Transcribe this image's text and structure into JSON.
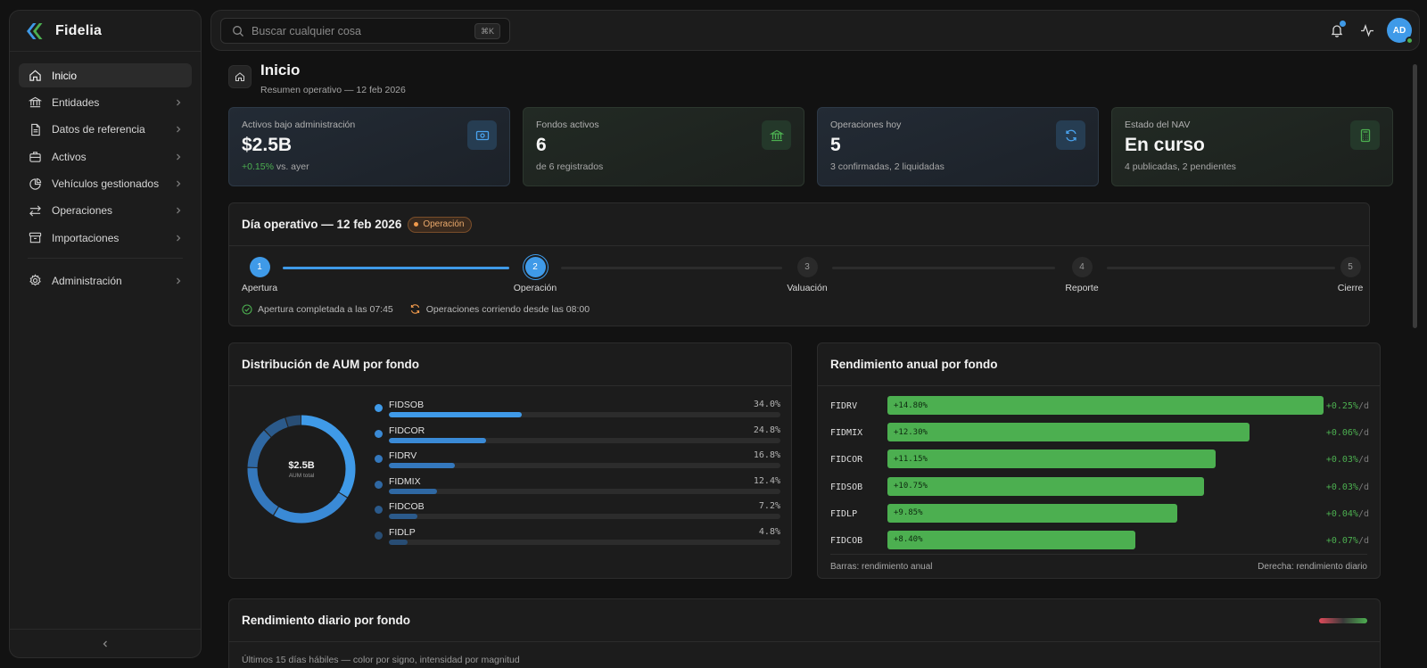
{
  "brand": {
    "name": "Fidelia",
    "logo_icon": "fidelia-logo"
  },
  "sidebar": {
    "items": [
      {
        "label": "Inicio",
        "icon": "home-icon",
        "active": true,
        "chevron": false
      },
      {
        "label": "Entidades",
        "icon": "bank-icon",
        "chevron": true
      },
      {
        "label": "Datos de referencia",
        "icon": "document-icon",
        "chevron": true
      },
      {
        "label": "Activos",
        "icon": "briefcase-icon",
        "chevron": true
      },
      {
        "label": "Vehículos gestionados",
        "icon": "pie-icon",
        "chevron": true
      },
      {
        "label": "Operaciones",
        "icon": "swap-icon",
        "chevron": true
      },
      {
        "label": "Importaciones",
        "icon": "archive-icon",
        "chevron": true
      }
    ],
    "admin": {
      "label": "Administración",
      "icon": "gear-icon"
    },
    "collapse_icon": "chevron-left-icon"
  },
  "topbar": {
    "search_placeholder": "Buscar cualquier cosa",
    "shortcut": "⌘K",
    "avatar_initials": "AD"
  },
  "page": {
    "title": "Inicio",
    "subtitle": "Resumen operativo — 12 feb 2026"
  },
  "stats": [
    {
      "label": "Activos bajo administración",
      "value": "$2.5B",
      "sub_pos": "+0.15%",
      "sub": " vs. ayer",
      "icon": "money-icon",
      "tone": "blue"
    },
    {
      "label": "Fondos activos",
      "value": "6",
      "sub": "de 6 registrados",
      "icon": "bank-icon",
      "tone": "green"
    },
    {
      "label": "Operaciones hoy",
      "value": "5",
      "sub": "3 confirmadas, 2 liquidadas",
      "icon": "refresh-icon",
      "tone": "blue"
    },
    {
      "label": "Estado del NAV",
      "value": "En curso",
      "sub": "4 publicadas, 2 pendientes",
      "icon": "calculator-icon",
      "tone": "green"
    }
  ],
  "opday": {
    "title": "Día operativo — 12 feb 2026",
    "badge": "Operación",
    "steps": [
      {
        "n": "1",
        "label": "Apertura",
        "state": "done"
      },
      {
        "n": "2",
        "label": "Operación",
        "state": "current"
      },
      {
        "n": "3",
        "label": "Valuación",
        "state": "pending"
      },
      {
        "n": "4",
        "label": "Reporte",
        "state": "pending"
      },
      {
        "n": "5",
        "label": "Cierre",
        "state": "pending"
      }
    ],
    "note_done": "Apertura completada a las 07:45",
    "note_running": "Operaciones corriendo desde las 08:00"
  },
  "aum": {
    "title": "Distribución de AUM por fondo",
    "total_value": "$2.5B",
    "total_label": "AUM total",
    "funds": [
      {
        "name": "FIDSOB",
        "pct_label": "34.0%",
        "pct": 34.0,
        "color": "#3f9ae8"
      },
      {
        "name": "FIDCOR",
        "pct_label": "24.8%",
        "pct": 24.8,
        "color": "#3a8ad6"
      },
      {
        "name": "FIDRV",
        "pct_label": "16.8%",
        "pct": 16.8,
        "color": "#3478bd"
      },
      {
        "name": "FIDMIX",
        "pct_label": "12.4%",
        "pct": 12.4,
        "color": "#2f68a3"
      },
      {
        "name": "FIDCOB",
        "pct_label": "7.2%",
        "pct": 7.2,
        "color": "#2b5a8b"
      },
      {
        "name": "FIDLP",
        "pct_label": "4.8%",
        "pct": 4.8,
        "color": "#284d74"
      }
    ]
  },
  "perf": {
    "title": "Rendimiento anual por fondo",
    "daily_unit": "/d",
    "max_annual": 14.8,
    "funds": [
      {
        "name": "FIDRV",
        "annual_label": "+14.80%",
        "annual": 14.8,
        "daily": "+0.25%"
      },
      {
        "name": "FIDMIX",
        "annual_label": "+12.30%",
        "annual": 12.3,
        "daily": "+0.06%"
      },
      {
        "name": "FIDCOR",
        "annual_label": "+11.15%",
        "annual": 11.15,
        "daily": "+0.03%"
      },
      {
        "name": "FIDSOB",
        "annual_label": "+10.75%",
        "annual": 10.75,
        "daily": "+0.03%"
      },
      {
        "name": "FIDLP",
        "annual_label": "+9.85%",
        "annual": 9.85,
        "daily": "+0.04%"
      },
      {
        "name": "FIDCOB",
        "annual_label": "+8.40%",
        "annual": 8.4,
        "daily": "+0.07%"
      }
    ],
    "foot_left": "Barras: rendimiento anual",
    "foot_right": "Derecha: rendimiento diario"
  },
  "daily": {
    "title": "Rendimiento diario por fondo",
    "subtitle": "Últimos 15 días hábiles — color por signo, intensidad por magnitud"
  },
  "colors": {
    "accent": "#3f9ae8",
    "positive": "#4caf50",
    "warning": "#f09a4c"
  }
}
